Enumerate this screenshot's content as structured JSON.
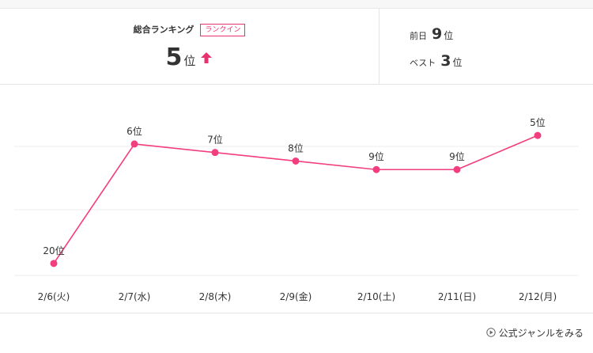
{
  "header": {
    "overall_label": "総合ランキング",
    "badge_label": "ランクイン",
    "current_rank": "5",
    "rank_unit": "位",
    "prev_day_label": "前日",
    "prev_day_rank": "9",
    "best_label": "ベスト",
    "best_rank": "3",
    "trend_icon": "up-arrow-icon",
    "accent_color": "#e8316f"
  },
  "chart_data": {
    "type": "line",
    "categories": [
      "2/6(火)",
      "2/7(水)",
      "2/8(木)",
      "2/9(金)",
      "2/10(土)",
      "2/11(日)",
      "2/12(月)"
    ],
    "series": [
      {
        "values": [
          20,
          6,
          7,
          8,
          9,
          9,
          5
        ]
      }
    ],
    "data_labels": [
      "20位",
      "6位",
      "7位",
      "8位",
      "9位",
      "9位",
      "5位"
    ],
    "y_reversed": true,
    "ylim": [
      1,
      30
    ],
    "grid": true,
    "color": "#f23d7e"
  },
  "footer": {
    "genre_link_label": "公式ジャンルをみる",
    "link_icon": "play-circle-icon"
  }
}
